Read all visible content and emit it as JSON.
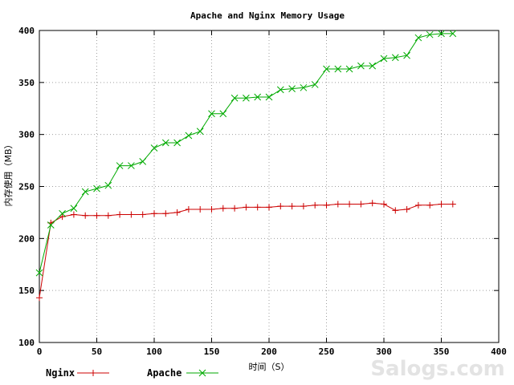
{
  "chart_data": {
    "type": "line",
    "title": "Apache and Nginx Memory Usage",
    "xlabel": "时间（S）",
    "ylabel": "内存使用（MB）",
    "xlim": [
      0,
      400
    ],
    "ylim": [
      100,
      400
    ],
    "xticks": [
      "0",
      "50",
      "100",
      "150",
      "200",
      "250",
      "300",
      "350",
      "400"
    ],
    "yticks": [
      "100",
      "150",
      "200",
      "250",
      "300",
      "350",
      "400"
    ],
    "grid": true,
    "legend_position": "bottom",
    "series": [
      {
        "name": "Nginx",
        "color": "#cc0000",
        "marker": "plus",
        "x": [
          0,
          10,
          20,
          30,
          40,
          50,
          60,
          70,
          80,
          90,
          100,
          110,
          120,
          130,
          140,
          150,
          160,
          170,
          180,
          190,
          200,
          210,
          220,
          230,
          240,
          250,
          260,
          270,
          280,
          290,
          300,
          310,
          320,
          330,
          340,
          350,
          360
        ],
        "y": [
          143,
          215,
          221,
          223,
          222,
          222,
          222,
          223,
          223,
          223,
          224,
          224,
          225,
          228,
          228,
          228,
          229,
          229,
          230,
          230,
          230,
          231,
          231,
          231,
          232,
          232,
          233,
          233,
          233,
          234,
          233,
          227,
          228,
          232,
          232,
          233,
          233
        ]
      },
      {
        "name": "Apache",
        "color": "#00aa00",
        "marker": "cross",
        "x": [
          0,
          10,
          20,
          30,
          40,
          50,
          60,
          70,
          80,
          90,
          100,
          110,
          120,
          130,
          140,
          150,
          160,
          170,
          180,
          190,
          200,
          210,
          220,
          230,
          240,
          250,
          260,
          270,
          280,
          290,
          300,
          310,
          320,
          330,
          340,
          350,
          360
        ],
        "y": [
          167,
          213,
          224,
          229,
          245,
          248,
          251,
          270,
          270,
          274,
          287,
          292,
          292,
          299,
          303,
          320,
          320,
          335,
          335,
          336,
          336,
          343,
          344,
          345,
          348,
          363,
          363,
          363,
          366,
          366,
          373,
          374,
          376,
          393,
          396,
          397,
          397
        ]
      }
    ]
  },
  "watermark": "Salogs.com"
}
